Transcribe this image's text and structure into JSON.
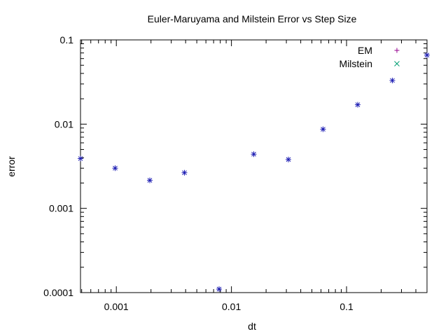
{
  "chart_data": {
    "type": "scatter",
    "title": "Euler-Maruyama and Milstein Error vs Step Size",
    "xlabel": "dt",
    "ylabel": "error",
    "xscale": "log",
    "yscale": "log",
    "xlim": [
      0.00048828125,
      0.5
    ],
    "ylim": [
      0.0001,
      0.1
    ],
    "grid": false,
    "legend_position": "top-right",
    "x_ticks": [
      {
        "value": 0.001,
        "label": "0.001"
      },
      {
        "value": 0.01,
        "label": "0.01"
      },
      {
        "value": 0.1,
        "label": "0.1"
      }
    ],
    "y_ticks": [
      {
        "value": 0.0001,
        "label": "0.0001"
      },
      {
        "value": 0.001,
        "label": "0.001"
      },
      {
        "value": 0.01,
        "label": "0.01"
      },
      {
        "value": 0.1,
        "label": "0.1"
      }
    ],
    "series": [
      {
        "name": "EM",
        "marker": "plus",
        "color": "#94008f",
        "points": [
          {
            "x": 0.00048828125,
            "y": 0.0039
          },
          {
            "x": 0.0009765625,
            "y": 0.003
          },
          {
            "x": 0.001953125,
            "y": 0.00215
          },
          {
            "x": 0.00390625,
            "y": 0.00265
          },
          {
            "x": 0.0078125,
            "y": 0.00011
          },
          {
            "x": 0.015625,
            "y": 0.0044
          },
          {
            "x": 0.03125,
            "y": 0.0038
          },
          {
            "x": 0.0625,
            "y": 0.0087
          },
          {
            "x": 0.125,
            "y": 0.017
          },
          {
            "x": 0.25,
            "y": 0.033
          },
          {
            "x": 0.5,
            "y": 0.066
          }
        ]
      },
      {
        "name": "Milstein",
        "marker": "cross",
        "color": "#009e73",
        "points": [
          {
            "x": 0.00048828125,
            "y": 0.0039
          },
          {
            "x": 0.0009765625,
            "y": 0.003
          },
          {
            "x": 0.001953125,
            "y": 0.00215
          },
          {
            "x": 0.00390625,
            "y": 0.00265
          },
          {
            "x": 0.0078125,
            "y": 0.00011
          },
          {
            "x": 0.015625,
            "y": 0.0044
          },
          {
            "x": 0.03125,
            "y": 0.0038
          },
          {
            "x": 0.0625,
            "y": 0.0087
          },
          {
            "x": 0.125,
            "y": 0.017
          },
          {
            "x": 0.25,
            "y": 0.033
          },
          {
            "x": 0.5,
            "y": 0.066
          }
        ]
      }
    ],
    "overlap_color": "#1f1fb4"
  }
}
